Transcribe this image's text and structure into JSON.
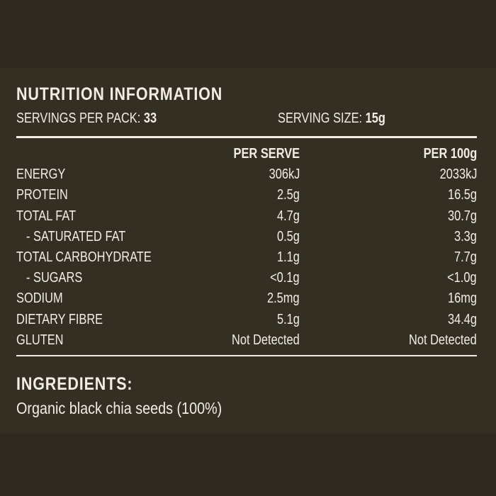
{
  "colors": {
    "background": "#2f2a1f",
    "panel": "#342f23",
    "text": "#f2eee6"
  },
  "nutrition": {
    "title": "NUTRITION INFORMATION",
    "servings_per_pack_label": "SERVINGS PER PACK:",
    "servings_per_pack_value": "33",
    "serving_size_label": "SERVING SIZE:",
    "serving_size_value": "15g",
    "columns": [
      "PER SERVE",
      "PER 100g"
    ],
    "rows": [
      {
        "name": "ENERGY",
        "per_serve": "306kJ",
        "per_100g": "2033kJ"
      },
      {
        "name": "PROTEIN",
        "per_serve": "2.5g",
        "per_100g": "16.5g"
      },
      {
        "name": "TOTAL FAT",
        "per_serve": "4.7g",
        "per_100g": "30.7g"
      },
      {
        "name": "- SATURATED FAT",
        "per_serve": "0.5g",
        "per_100g": "3.3g"
      },
      {
        "name": "TOTAL CARBOHYDRATE",
        "per_serve": "1.1g",
        "per_100g": "7.7g"
      },
      {
        "name": "- SUGARS",
        "per_serve": "<0.1g",
        "per_100g": "<1.0g"
      },
      {
        "name": "SODIUM",
        "per_serve": "2.5mg",
        "per_100g": "16mg"
      },
      {
        "name": "DIETARY FIBRE",
        "per_serve": "5.1g",
        "per_100g": "34.4g"
      },
      {
        "name": "GLUTEN",
        "per_serve": "Not Detected",
        "per_100g": "Not Detected"
      }
    ]
  },
  "ingredients": {
    "title": "INGREDIENTS:",
    "text": "Organic black chia seeds (100%)"
  }
}
